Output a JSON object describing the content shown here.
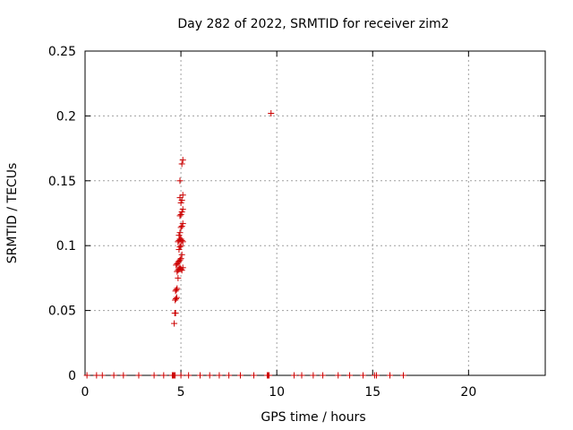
{
  "chart_data": {
    "type": "scatter",
    "title": "Day 282 of 2022, SRMTID for receiver zim2",
    "xlabel": "GPS time / hours",
    "ylabel": "SRMTID / TECUs",
    "xlim": [
      0,
      24
    ],
    "ylim": [
      0,
      0.25
    ],
    "xticks": [
      0,
      5,
      10,
      15,
      20
    ],
    "xtick_labels": [
      "0",
      "5",
      "10",
      "15",
      "20"
    ],
    "yticks": [
      0,
      0.05,
      0.1,
      0.15,
      0.2,
      0.25
    ],
    "ytick_labels": [
      "0",
      "0.05",
      "0.1",
      "0.15",
      "0.2",
      "0.25"
    ],
    "grid": true,
    "marker": "plus",
    "series": [
      {
        "color": "#cc0000",
        "points": [
          [
            0.1,
            0
          ],
          [
            0.6,
            0
          ],
          [
            0.9,
            0
          ],
          [
            1.5,
            0
          ],
          [
            2.0,
            0
          ],
          [
            2.8,
            0
          ],
          [
            3.6,
            0
          ],
          [
            4.1,
            0
          ],
          [
            4.55,
            0
          ],
          [
            4.6,
            0
          ],
          [
            4.65,
            0
          ],
          [
            4.7,
            0
          ],
          [
            5.0,
            0
          ],
          [
            5.4,
            0
          ],
          [
            6.0,
            0
          ],
          [
            6.5,
            0
          ],
          [
            7.0,
            0
          ],
          [
            7.5,
            0
          ],
          [
            8.1,
            0
          ],
          [
            8.8,
            0
          ],
          [
            9.5,
            0
          ],
          [
            9.55,
            0
          ],
          [
            9.6,
            0
          ],
          [
            10.9,
            0
          ],
          [
            11.3,
            0
          ],
          [
            11.9,
            0
          ],
          [
            12.4,
            0
          ],
          [
            13.2,
            0
          ],
          [
            13.8,
            0
          ],
          [
            14.5,
            0
          ],
          [
            15.1,
            0
          ],
          [
            15.2,
            0
          ],
          [
            15.9,
            0
          ],
          [
            16.6,
            0
          ],
          [
            4.65,
            0.04
          ],
          [
            4.68,
            0.048
          ],
          [
            4.72,
            0.048
          ],
          [
            4.7,
            0.058
          ],
          [
            4.74,
            0.059
          ],
          [
            4.78,
            0.06
          ],
          [
            4.72,
            0.065
          ],
          [
            4.76,
            0.066
          ],
          [
            4.8,
            0.067
          ],
          [
            4.85,
            0.075
          ],
          [
            4.8,
            0.08
          ],
          [
            4.85,
            0.081
          ],
          [
            4.9,
            0.082
          ],
          [
            4.95,
            0.083
          ],
          [
            5.0,
            0.082
          ],
          [
            5.05,
            0.081
          ],
          [
            5.1,
            0.083
          ],
          [
            4.75,
            0.085
          ],
          [
            4.8,
            0.086
          ],
          [
            4.85,
            0.087
          ],
          [
            4.9,
            0.088
          ],
          [
            4.95,
            0.089
          ],
          [
            5.0,
            0.09
          ],
          [
            5.05,
            0.093
          ],
          [
            4.9,
            0.097
          ],
          [
            4.95,
            0.099
          ],
          [
            5.0,
            0.1
          ],
          [
            4.85,
            0.103
          ],
          [
            4.9,
            0.104
          ],
          [
            4.95,
            0.105
          ],
          [
            5.0,
            0.105
          ],
          [
            5.05,
            0.104
          ],
          [
            5.1,
            0.103
          ],
          [
            4.9,
            0.108
          ],
          [
            4.95,
            0.11
          ],
          [
            5.0,
            0.114
          ],
          [
            5.05,
            0.115
          ],
          [
            5.1,
            0.117
          ],
          [
            4.95,
            0.123
          ],
          [
            5.0,
            0.124
          ],
          [
            5.05,
            0.126
          ],
          [
            5.1,
            0.128
          ],
          [
            5.0,
            0.133
          ],
          [
            5.05,
            0.135
          ],
          [
            4.95,
            0.137
          ],
          [
            5.1,
            0.139
          ],
          [
            4.95,
            0.15
          ],
          [
            5.05,
            0.163
          ],
          [
            5.1,
            0.166
          ],
          [
            9.7,
            0.202
          ]
        ]
      }
    ]
  }
}
